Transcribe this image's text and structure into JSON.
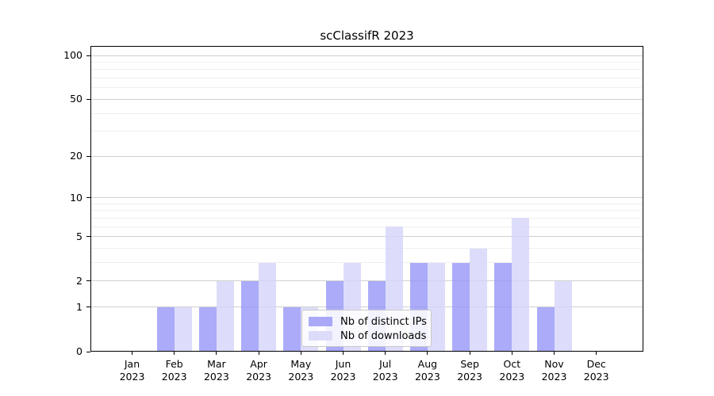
{
  "title": "scClassifR 2023",
  "legend": {
    "items": [
      {
        "label": "Nb of distinct IPs",
        "color": "#a9a9f8"
      },
      {
        "label": "Nb of downloads",
        "color": "#dcdcfa"
      }
    ]
  },
  "chart_data": {
    "type": "bar",
    "title": "scClassifR 2023",
    "categories": [
      "Jan 2023",
      "Feb 2023",
      "Mar 2023",
      "Apr 2023",
      "May 2023",
      "Jun 2023",
      "Jul 2023",
      "Aug 2023",
      "Sep 2023",
      "Oct 2023",
      "Nov 2023",
      "Dec 2023"
    ],
    "series": [
      {
        "name": "Nb of distinct IPs",
        "values": [
          0,
          1,
          1,
          2,
          1,
          2,
          2,
          3,
          3,
          3,
          1,
          0
        ],
        "fill": "rgba(150,150,248,0.8)"
      },
      {
        "name": "Nb of downloads",
        "values": [
          0,
          1,
          2,
          3,
          1,
          3,
          6,
          3,
          4,
          7,
          2,
          0
        ],
        "fill": "rgba(213,213,250,0.8)"
      }
    ],
    "xlabel": "",
    "ylabel": "",
    "yscale": "log1p",
    "yticks": [
      0,
      1,
      2,
      5,
      10,
      20,
      50,
      100
    ],
    "minor_yticks": [
      3,
      4,
      6,
      7,
      8,
      9,
      30,
      40,
      60,
      70,
      80,
      90
    ],
    "ylim": [
      0,
      117
    ],
    "grid": true,
    "legend_position": "inside-bottom-center"
  }
}
